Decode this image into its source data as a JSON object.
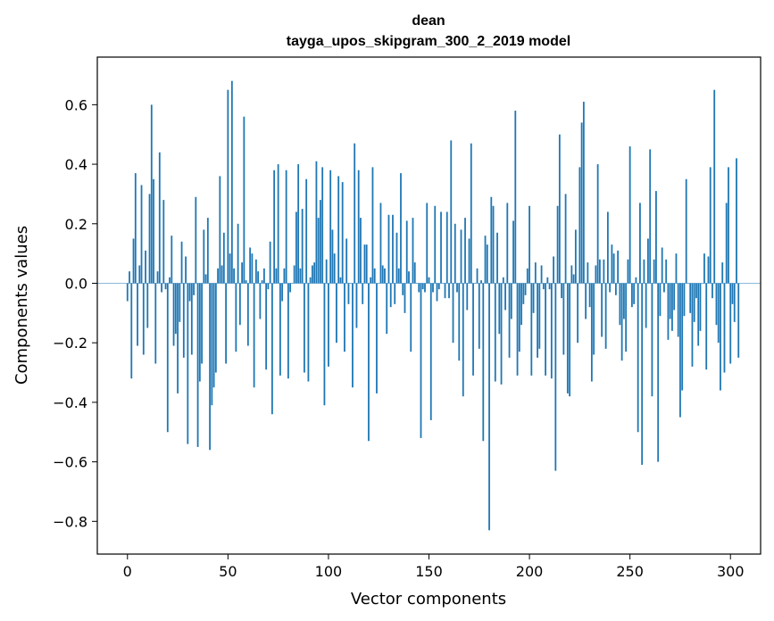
{
  "chart_data": {
    "type": "bar",
    "title": "dean",
    "subtitle": "tayga_upos_skipgram_300_2_2019 model",
    "xlabel": "Vector components",
    "ylabel": "Components values",
    "xlim": [
      -15,
      315
    ],
    "ylim": [
      -0.91,
      0.76
    ],
    "xticks": [
      0,
      50,
      100,
      150,
      200,
      250,
      300
    ],
    "xtick_labels": [
      "0",
      "50",
      "100",
      "150",
      "200",
      "250",
      "300"
    ],
    "yticks": [
      -0.8,
      -0.6,
      -0.4,
      -0.2,
      0.0,
      0.2,
      0.4,
      0.6
    ],
    "ytick_labels": [
      "−0.8",
      "−0.6",
      "−0.4",
      "−0.2",
      "0.0",
      "0.2",
      "0.4",
      "0.6"
    ],
    "grid": false,
    "bar_color": "#1f77b4",
    "values": [
      -0.06,
      0.04,
      -0.32,
      0.15,
      0.37,
      -0.21,
      0.06,
      0.33,
      -0.24,
      0.11,
      -0.15,
      0.3,
      0.6,
      0.35,
      -0.27,
      0.04,
      0.44,
      -0.03,
      0.28,
      -0.02,
      -0.5,
      0.02,
      0.16,
      -0.21,
      -0.17,
      -0.37,
      -0.13,
      0.14,
      -0.25,
      0.09,
      -0.54,
      -0.06,
      -0.24,
      -0.04,
      0.29,
      -0.55,
      -0.33,
      -0.27,
      0.18,
      0.03,
      0.22,
      -0.56,
      -0.41,
      -0.35,
      -0.3,
      0.05,
      0.36,
      0.06,
      0.17,
      -0.27,
      0.65,
      0.1,
      0.68,
      0.05,
      -0.23,
      0.2,
      -0.14,
      0.07,
      0.56,
      0.01,
      -0.21,
      0.12,
      0.1,
      -0.35,
      0.08,
      0.04,
      -0.12,
      0.01,
      0.05,
      -0.29,
      -0.02,
      0.14,
      -0.44,
      0.38,
      0.05,
      0.4,
      -0.31,
      -0.06,
      0.05,
      0.38,
      -0.32,
      -0.03,
      0.0,
      0.06,
      0.24,
      0.4,
      0.05,
      0.25,
      -0.3,
      0.35,
      -0.33,
      0.02,
      0.06,
      0.07,
      0.41,
      0.22,
      0.28,
      0.39,
      -0.41,
      0.08,
      -0.28,
      0.38,
      0.18,
      0.1,
      -0.2,
      0.36,
      0.02,
      0.34,
      -0.23,
      0.15,
      -0.07,
      0.0,
      -0.35,
      0.47,
      -0.15,
      0.38,
      0.22,
      -0.07,
      0.13,
      0.13,
      -0.53,
      0.02,
      0.39,
      0.05,
      -0.37,
      0.0,
      0.27,
      0.06,
      0.05,
      -0.17,
      0.23,
      -0.08,
      0.23,
      -0.07,
      0.17,
      0.05,
      0.37,
      -0.04,
      -0.1,
      0.21,
      0.04,
      -0.23,
      0.22,
      0.07,
      0.0,
      -0.03,
      -0.52,
      -0.02,
      -0.03,
      0.27,
      0.02,
      -0.46,
      -0.03,
      0.26,
      -0.06,
      -0.02,
      0.24,
      0.0,
      -0.05,
      0.24,
      -0.05,
      0.48,
      -0.2,
      0.2,
      -0.03,
      -0.26,
      0.18,
      -0.38,
      0.22,
      -0.09,
      0.15,
      0.47,
      -0.31,
      0.0,
      0.05,
      -0.22,
      0.01,
      -0.53,
      0.16,
      0.13,
      -0.83,
      0.29,
      0.26,
      -0.33,
      0.17,
      -0.17,
      -0.34,
      0.02,
      -0.09,
      0.27,
      -0.25,
      -0.12,
      0.21,
      0.58,
      -0.31,
      -0.23,
      -0.14,
      -0.07,
      -0.04,
      0.05,
      0.26,
      -0.31,
      -0.1,
      0.07,
      -0.25,
      -0.22,
      0.06,
      -0.02,
      -0.31,
      0.02,
      -0.02,
      -0.32,
      0.09,
      -0.63,
      0.26,
      0.5,
      -0.05,
      -0.24,
      0.3,
      -0.37,
      -0.38,
      0.06,
      0.03,
      0.18,
      -0.2,
      0.39,
      0.54,
      0.61,
      -0.12,
      0.07,
      -0.08,
      -0.33,
      -0.24,
      0.06,
      0.4,
      0.08,
      -0.18,
      0.08,
      -0.22,
      0.24,
      -0.03,
      0.13,
      0.1,
      -0.04,
      0.11,
      -0.14,
      -0.26,
      -0.12,
      -0.23,
      0.08,
      0.46,
      -0.08,
      -0.07,
      0.02,
      -0.5,
      0.27,
      -0.61,
      0.08,
      -0.15,
      0.15,
      0.45,
      -0.38,
      0.08,
      0.31,
      -0.6,
      -0.11,
      0.12,
      -0.03,
      0.08,
      -0.19,
      -0.12,
      -0.16,
      -0.09,
      0.1,
      -0.18,
      -0.45,
      -0.36,
      -0.11,
      0.35,
      0.0,
      -0.1,
      -0.28,
      -0.13,
      -0.05,
      -0.21,
      -0.16,
      0.0,
      0.1,
      -0.29,
      0.09,
      0.39,
      -0.05,
      0.65,
      -0.14,
      -0.2,
      -0.36,
      0.07,
      -0.3,
      0.27,
      0.39,
      -0.27,
      -0.07,
      -0.13,
      0.42,
      -0.25
    ]
  }
}
